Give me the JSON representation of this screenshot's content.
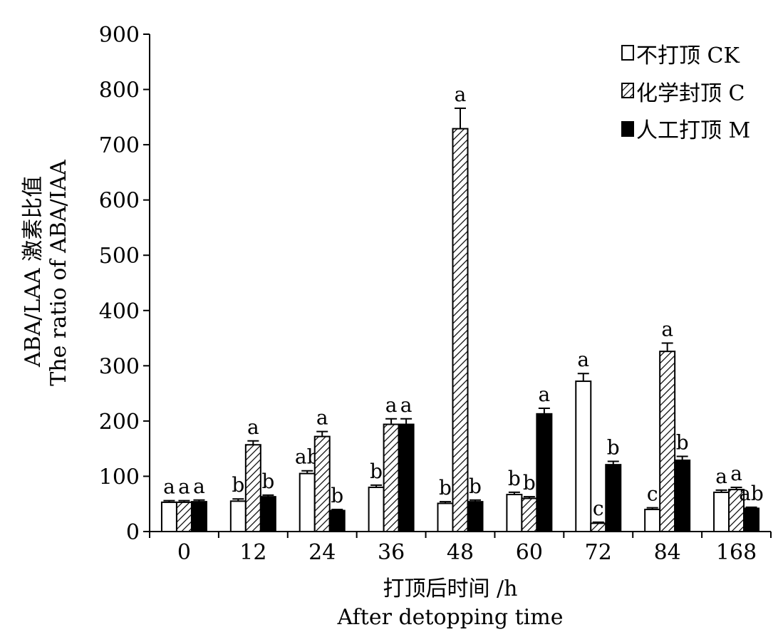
{
  "chart_data": {
    "type": "bar",
    "xlabel": "打顶后时间 /h",
    "xlabel_en": "After detopping time",
    "ylabel": "ABA/LAA 激素比值",
    "ylabel_en": "The ratio of ABA/IAA",
    "ylim": [
      0,
      900
    ],
    "yticks": [
      "0",
      "100",
      "200",
      "300",
      "400",
      "500",
      "600",
      "700",
      "800",
      "900"
    ],
    "categories": [
      "0",
      "12",
      "24",
      "36",
      "48",
      "60",
      "72",
      "84",
      "168"
    ],
    "legend_position": "top-right",
    "series": [
      {
        "name": "不打顶 CK",
        "pattern": "open",
        "values": [
          53,
          55,
          105,
          80,
          51,
          67,
          272,
          40,
          71
        ],
        "errors": [
          3,
          4,
          5,
          4,
          3,
          4,
          14,
          3,
          4
        ],
        "labels": [
          "a",
          "b",
          "ab",
          "b",
          "b",
          "b",
          "a",
          "c",
          "a"
        ]
      },
      {
        "name": "化学封顶 C",
        "pattern": "hatched",
        "values": [
          53,
          157,
          172,
          194,
          729,
          60,
          15,
          326,
          76
        ],
        "errors": [
          3,
          7,
          9,
          10,
          37,
          3,
          2,
          15,
          4
        ],
        "labels": [
          "a",
          "a",
          "a",
          "a",
          "a",
          "b",
          "c",
          "a",
          "a"
        ]
      },
      {
        "name": "人工打顶 M",
        "pattern": "solid",
        "values": [
          54,
          63,
          38,
          194,
          54,
          213,
          121,
          129,
          42
        ],
        "errors": [
          3,
          3,
          2,
          10,
          3,
          10,
          6,
          7,
          2
        ],
        "labels": [
          "a",
          "b",
          "b",
          "a",
          "b",
          "a",
          "b",
          "b",
          "ab"
        ]
      }
    ]
  }
}
